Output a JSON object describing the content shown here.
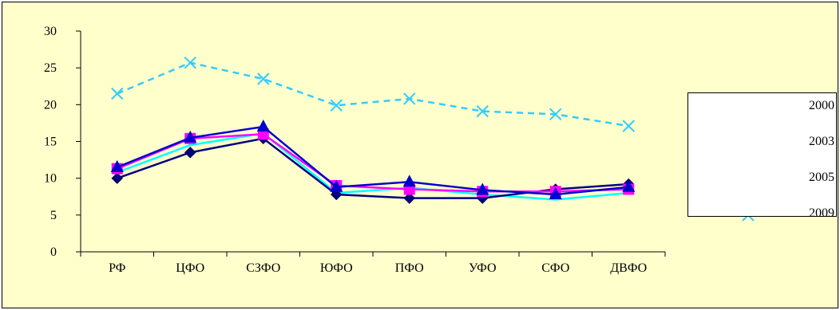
{
  "chart_data": {
    "type": "line",
    "title": "",
    "xlabel": "",
    "ylabel": "",
    "ylim": [
      0,
      30
    ],
    "yticks": [
      0,
      5,
      10,
      15,
      20,
      25,
      30
    ],
    "grid": false,
    "legend_position": "right",
    "categories": [
      "РФ",
      "ЦФО",
      "СЗФО",
      "ЮФО",
      "ПФО",
      "УФО",
      "СФО",
      "ДВФО"
    ],
    "series": [
      {
        "name": "2000",
        "color": "#000080",
        "marker": "diamond",
        "dashed": false,
        "values": [
          10.0,
          13.5,
          15.4,
          7.8,
          7.3,
          7.3,
          8.5,
          9.2
        ]
      },
      {
        "name": "2003",
        "color": "#ff00ff",
        "marker": "square",
        "dashed": false,
        "values": [
          11.3,
          15.4,
          16.0,
          9.0,
          8.5,
          8.2,
          8.2,
          8.5
        ]
      },
      {
        "name": "2005",
        "color": "#0000cc",
        "marker": "triangle",
        "dashed": false,
        "values": [
          11.5,
          15.5,
          17.0,
          8.8,
          9.5,
          8.4,
          7.8,
          8.8
        ]
      },
      {
        "name": "2009",
        "color": "#33ccff",
        "marker": "x",
        "dashed": true,
        "values": [
          21.5,
          25.7,
          23.5,
          19.9,
          20.8,
          19.1,
          18.7,
          17.1
        ]
      }
    ],
    "extra_lines": [
      {
        "color": "#00ffff",
        "values": [
          10.8,
          14.5,
          16.1,
          8.0,
          8.7,
          7.8,
          7.1,
          8.0
        ]
      }
    ]
  }
}
